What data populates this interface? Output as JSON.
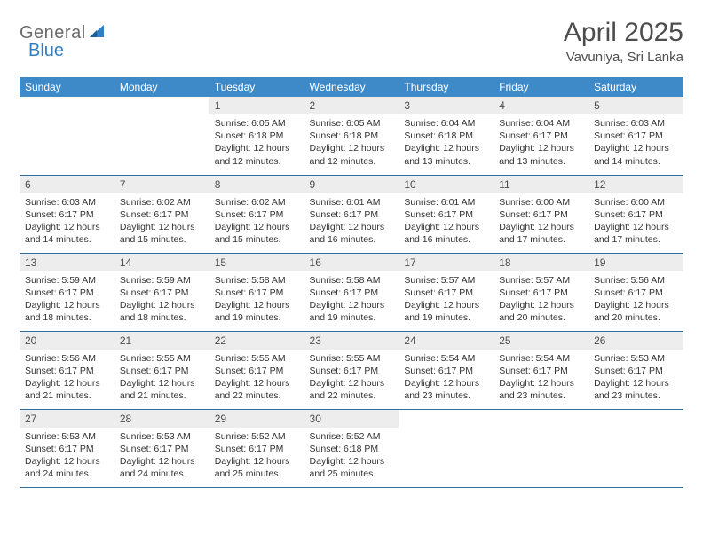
{
  "brand": {
    "part1": "General",
    "part2": "Blue"
  },
  "title": "April 2025",
  "location": "Vavuniya, Sri Lanka",
  "colors": {
    "header_bg": "#3e8ac9",
    "header_text": "#ffffff",
    "daynum_bg": "#ededed",
    "border": "#2f6ea6",
    "text": "#333333",
    "brand_gray": "#6a6a6a",
    "brand_blue": "#2f7fc2"
  },
  "weekdays": [
    "Sunday",
    "Monday",
    "Tuesday",
    "Wednesday",
    "Thursday",
    "Friday",
    "Saturday"
  ],
  "weeks": [
    [
      {
        "day": "",
        "sunrise": "",
        "sunset": "",
        "daylight": ""
      },
      {
        "day": "",
        "sunrise": "",
        "sunset": "",
        "daylight": ""
      },
      {
        "day": "1",
        "sunrise": "Sunrise: 6:05 AM",
        "sunset": "Sunset: 6:18 PM",
        "daylight": "Daylight: 12 hours and 12 minutes."
      },
      {
        "day": "2",
        "sunrise": "Sunrise: 6:05 AM",
        "sunset": "Sunset: 6:18 PM",
        "daylight": "Daylight: 12 hours and 12 minutes."
      },
      {
        "day": "3",
        "sunrise": "Sunrise: 6:04 AM",
        "sunset": "Sunset: 6:18 PM",
        "daylight": "Daylight: 12 hours and 13 minutes."
      },
      {
        "day": "4",
        "sunrise": "Sunrise: 6:04 AM",
        "sunset": "Sunset: 6:17 PM",
        "daylight": "Daylight: 12 hours and 13 minutes."
      },
      {
        "day": "5",
        "sunrise": "Sunrise: 6:03 AM",
        "sunset": "Sunset: 6:17 PM",
        "daylight": "Daylight: 12 hours and 14 minutes."
      }
    ],
    [
      {
        "day": "6",
        "sunrise": "Sunrise: 6:03 AM",
        "sunset": "Sunset: 6:17 PM",
        "daylight": "Daylight: 12 hours and 14 minutes."
      },
      {
        "day": "7",
        "sunrise": "Sunrise: 6:02 AM",
        "sunset": "Sunset: 6:17 PM",
        "daylight": "Daylight: 12 hours and 15 minutes."
      },
      {
        "day": "8",
        "sunrise": "Sunrise: 6:02 AM",
        "sunset": "Sunset: 6:17 PM",
        "daylight": "Daylight: 12 hours and 15 minutes."
      },
      {
        "day": "9",
        "sunrise": "Sunrise: 6:01 AM",
        "sunset": "Sunset: 6:17 PM",
        "daylight": "Daylight: 12 hours and 16 minutes."
      },
      {
        "day": "10",
        "sunrise": "Sunrise: 6:01 AM",
        "sunset": "Sunset: 6:17 PM",
        "daylight": "Daylight: 12 hours and 16 minutes."
      },
      {
        "day": "11",
        "sunrise": "Sunrise: 6:00 AM",
        "sunset": "Sunset: 6:17 PM",
        "daylight": "Daylight: 12 hours and 17 minutes."
      },
      {
        "day": "12",
        "sunrise": "Sunrise: 6:00 AM",
        "sunset": "Sunset: 6:17 PM",
        "daylight": "Daylight: 12 hours and 17 minutes."
      }
    ],
    [
      {
        "day": "13",
        "sunrise": "Sunrise: 5:59 AM",
        "sunset": "Sunset: 6:17 PM",
        "daylight": "Daylight: 12 hours and 18 minutes."
      },
      {
        "day": "14",
        "sunrise": "Sunrise: 5:59 AM",
        "sunset": "Sunset: 6:17 PM",
        "daylight": "Daylight: 12 hours and 18 minutes."
      },
      {
        "day": "15",
        "sunrise": "Sunrise: 5:58 AM",
        "sunset": "Sunset: 6:17 PM",
        "daylight": "Daylight: 12 hours and 19 minutes."
      },
      {
        "day": "16",
        "sunrise": "Sunrise: 5:58 AM",
        "sunset": "Sunset: 6:17 PM",
        "daylight": "Daylight: 12 hours and 19 minutes."
      },
      {
        "day": "17",
        "sunrise": "Sunrise: 5:57 AM",
        "sunset": "Sunset: 6:17 PM",
        "daylight": "Daylight: 12 hours and 19 minutes."
      },
      {
        "day": "18",
        "sunrise": "Sunrise: 5:57 AM",
        "sunset": "Sunset: 6:17 PM",
        "daylight": "Daylight: 12 hours and 20 minutes."
      },
      {
        "day": "19",
        "sunrise": "Sunrise: 5:56 AM",
        "sunset": "Sunset: 6:17 PM",
        "daylight": "Daylight: 12 hours and 20 minutes."
      }
    ],
    [
      {
        "day": "20",
        "sunrise": "Sunrise: 5:56 AM",
        "sunset": "Sunset: 6:17 PM",
        "daylight": "Daylight: 12 hours and 21 minutes."
      },
      {
        "day": "21",
        "sunrise": "Sunrise: 5:55 AM",
        "sunset": "Sunset: 6:17 PM",
        "daylight": "Daylight: 12 hours and 21 minutes."
      },
      {
        "day": "22",
        "sunrise": "Sunrise: 5:55 AM",
        "sunset": "Sunset: 6:17 PM",
        "daylight": "Daylight: 12 hours and 22 minutes."
      },
      {
        "day": "23",
        "sunrise": "Sunrise: 5:55 AM",
        "sunset": "Sunset: 6:17 PM",
        "daylight": "Daylight: 12 hours and 22 minutes."
      },
      {
        "day": "24",
        "sunrise": "Sunrise: 5:54 AM",
        "sunset": "Sunset: 6:17 PM",
        "daylight": "Daylight: 12 hours and 23 minutes."
      },
      {
        "day": "25",
        "sunrise": "Sunrise: 5:54 AM",
        "sunset": "Sunset: 6:17 PM",
        "daylight": "Daylight: 12 hours and 23 minutes."
      },
      {
        "day": "26",
        "sunrise": "Sunrise: 5:53 AM",
        "sunset": "Sunset: 6:17 PM",
        "daylight": "Daylight: 12 hours and 23 minutes."
      }
    ],
    [
      {
        "day": "27",
        "sunrise": "Sunrise: 5:53 AM",
        "sunset": "Sunset: 6:17 PM",
        "daylight": "Daylight: 12 hours and 24 minutes."
      },
      {
        "day": "28",
        "sunrise": "Sunrise: 5:53 AM",
        "sunset": "Sunset: 6:17 PM",
        "daylight": "Daylight: 12 hours and 24 minutes."
      },
      {
        "day": "29",
        "sunrise": "Sunrise: 5:52 AM",
        "sunset": "Sunset: 6:17 PM",
        "daylight": "Daylight: 12 hours and 25 minutes."
      },
      {
        "day": "30",
        "sunrise": "Sunrise: 5:52 AM",
        "sunset": "Sunset: 6:18 PM",
        "daylight": "Daylight: 12 hours and 25 minutes."
      },
      {
        "day": "",
        "sunrise": "",
        "sunset": "",
        "daylight": ""
      },
      {
        "day": "",
        "sunrise": "",
        "sunset": "",
        "daylight": ""
      },
      {
        "day": "",
        "sunrise": "",
        "sunset": "",
        "daylight": ""
      }
    ]
  ]
}
